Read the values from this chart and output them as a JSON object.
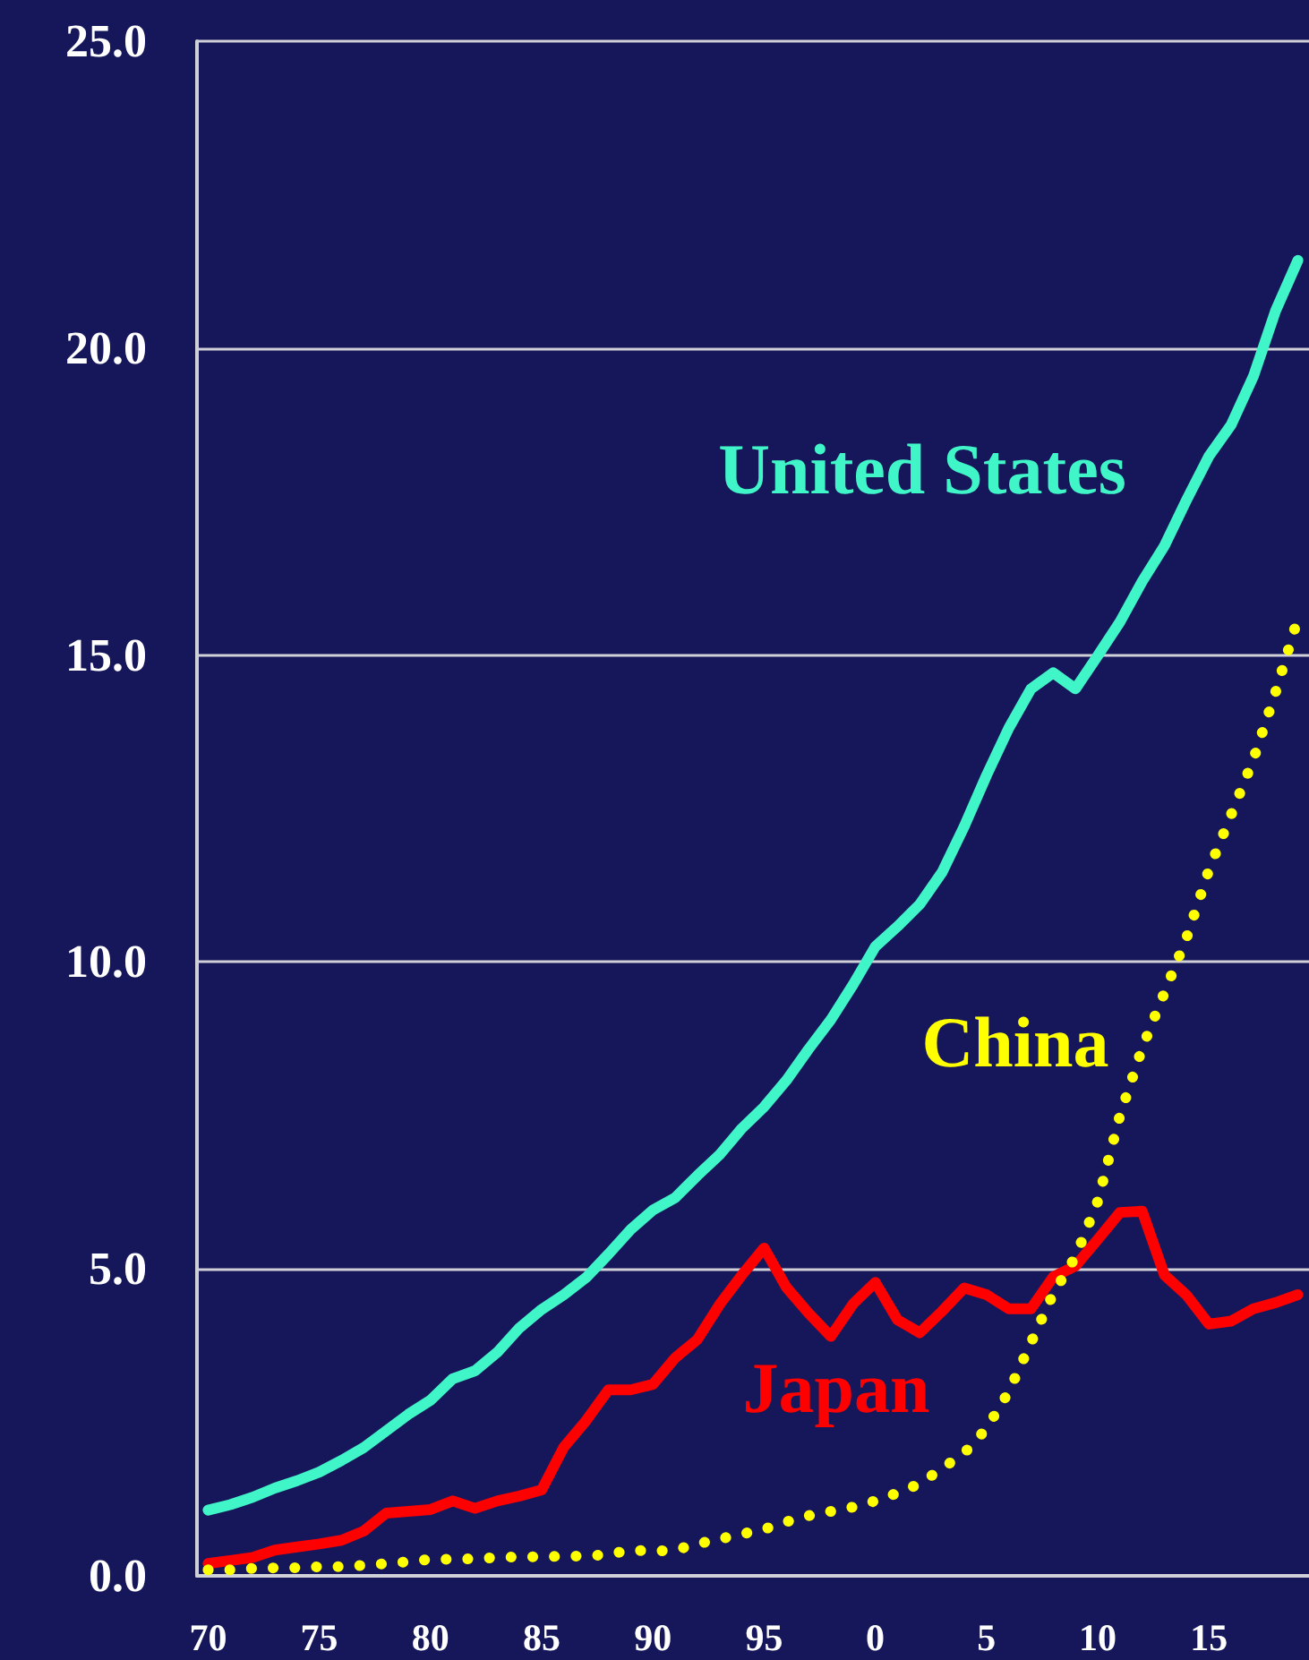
{
  "chart_data": {
    "type": "line",
    "categories": [
      "70",
      null,
      null,
      null,
      null,
      "75",
      null,
      null,
      null,
      null,
      "80",
      null,
      null,
      null,
      null,
      "85",
      null,
      null,
      null,
      null,
      "90",
      null,
      null,
      null,
      null,
      "95",
      null,
      null,
      null,
      null,
      "0",
      null,
      null,
      null,
      null,
      "5",
      null,
      null,
      null,
      null,
      "10",
      null,
      null,
      null,
      null,
      "15",
      null,
      null,
      null,
      null
    ],
    "series": [
      {
        "name": "United States",
        "color": "#40f5c8",
        "line_style": "solid",
        "values": [
          1.07,
          1.16,
          1.28,
          1.43,
          1.55,
          1.69,
          1.88,
          2.09,
          2.36,
          2.63,
          2.86,
          3.21,
          3.34,
          3.64,
          4.04,
          4.34,
          4.58,
          4.86,
          5.24,
          5.64,
          5.96,
          6.16,
          6.52,
          6.86,
          7.29,
          7.64,
          8.07,
          8.58,
          9.06,
          9.63,
          10.25,
          10.58,
          10.94,
          11.46,
          12.21,
          13.04,
          13.81,
          14.45,
          14.71,
          14.45,
          14.99,
          15.54,
          16.2,
          16.78,
          17.53,
          18.24,
          18.75,
          19.54,
          20.61,
          21.43
        ]
      },
      {
        "name": "China",
        "color": "#ffff00",
        "line_style": "dotted",
        "values": [
          0.1,
          0.1,
          0.12,
          0.13,
          0.13,
          0.15,
          0.15,
          0.17,
          0.2,
          0.23,
          0.27,
          0.27,
          0.28,
          0.3,
          0.31,
          0.31,
          0.32,
          0.32,
          0.35,
          0.42,
          0.4,
          0.42,
          0.52,
          0.6,
          0.68,
          0.76,
          0.88,
          0.98,
          1.05,
          1.12,
          1.22,
          1.35,
          1.5,
          1.75,
          2.0,
          2.4,
          3.0,
          3.8,
          4.6,
          5.2,
          6.1,
          7.5,
          8.6,
          9.5,
          10.4,
          11.5,
          12.4,
          13.3,
          14.4,
          15.6
        ]
      },
      {
        "name": "Japan",
        "color": "#ff0000",
        "line_style": "solid",
        "values": [
          0.2,
          0.25,
          0.3,
          0.42,
          0.47,
          0.52,
          0.58,
          0.73,
          1.02,
          1.05,
          1.08,
          1.22,
          1.1,
          1.22,
          1.3,
          1.4,
          2.1,
          2.53,
          3.03,
          3.03,
          3.12,
          3.55,
          3.85,
          4.42,
          4.9,
          5.34,
          4.7,
          4.28,
          3.9,
          4.43,
          4.78,
          4.17,
          3.96,
          4.31,
          4.69,
          4.58,
          4.35,
          4.35,
          4.87,
          5.05,
          5.48,
          5.92,
          5.94,
          4.9,
          4.57,
          4.1,
          4.15,
          4.35,
          4.45,
          4.58
        ]
      }
    ],
    "ylim": [
      0,
      25
    ],
    "yticks": [
      {
        "value": 0,
        "label": "0.0"
      },
      {
        "value": 5,
        "label": "5.0"
      },
      {
        "value": 10,
        "label": "10.0"
      },
      {
        "value": 15,
        "label": "15.0"
      },
      {
        "value": 20,
        "label": "20.0"
      },
      {
        "value": 25,
        "label": "25.0"
      }
    ],
    "grid": "y",
    "marker": "none",
    "legend": false
  }
}
